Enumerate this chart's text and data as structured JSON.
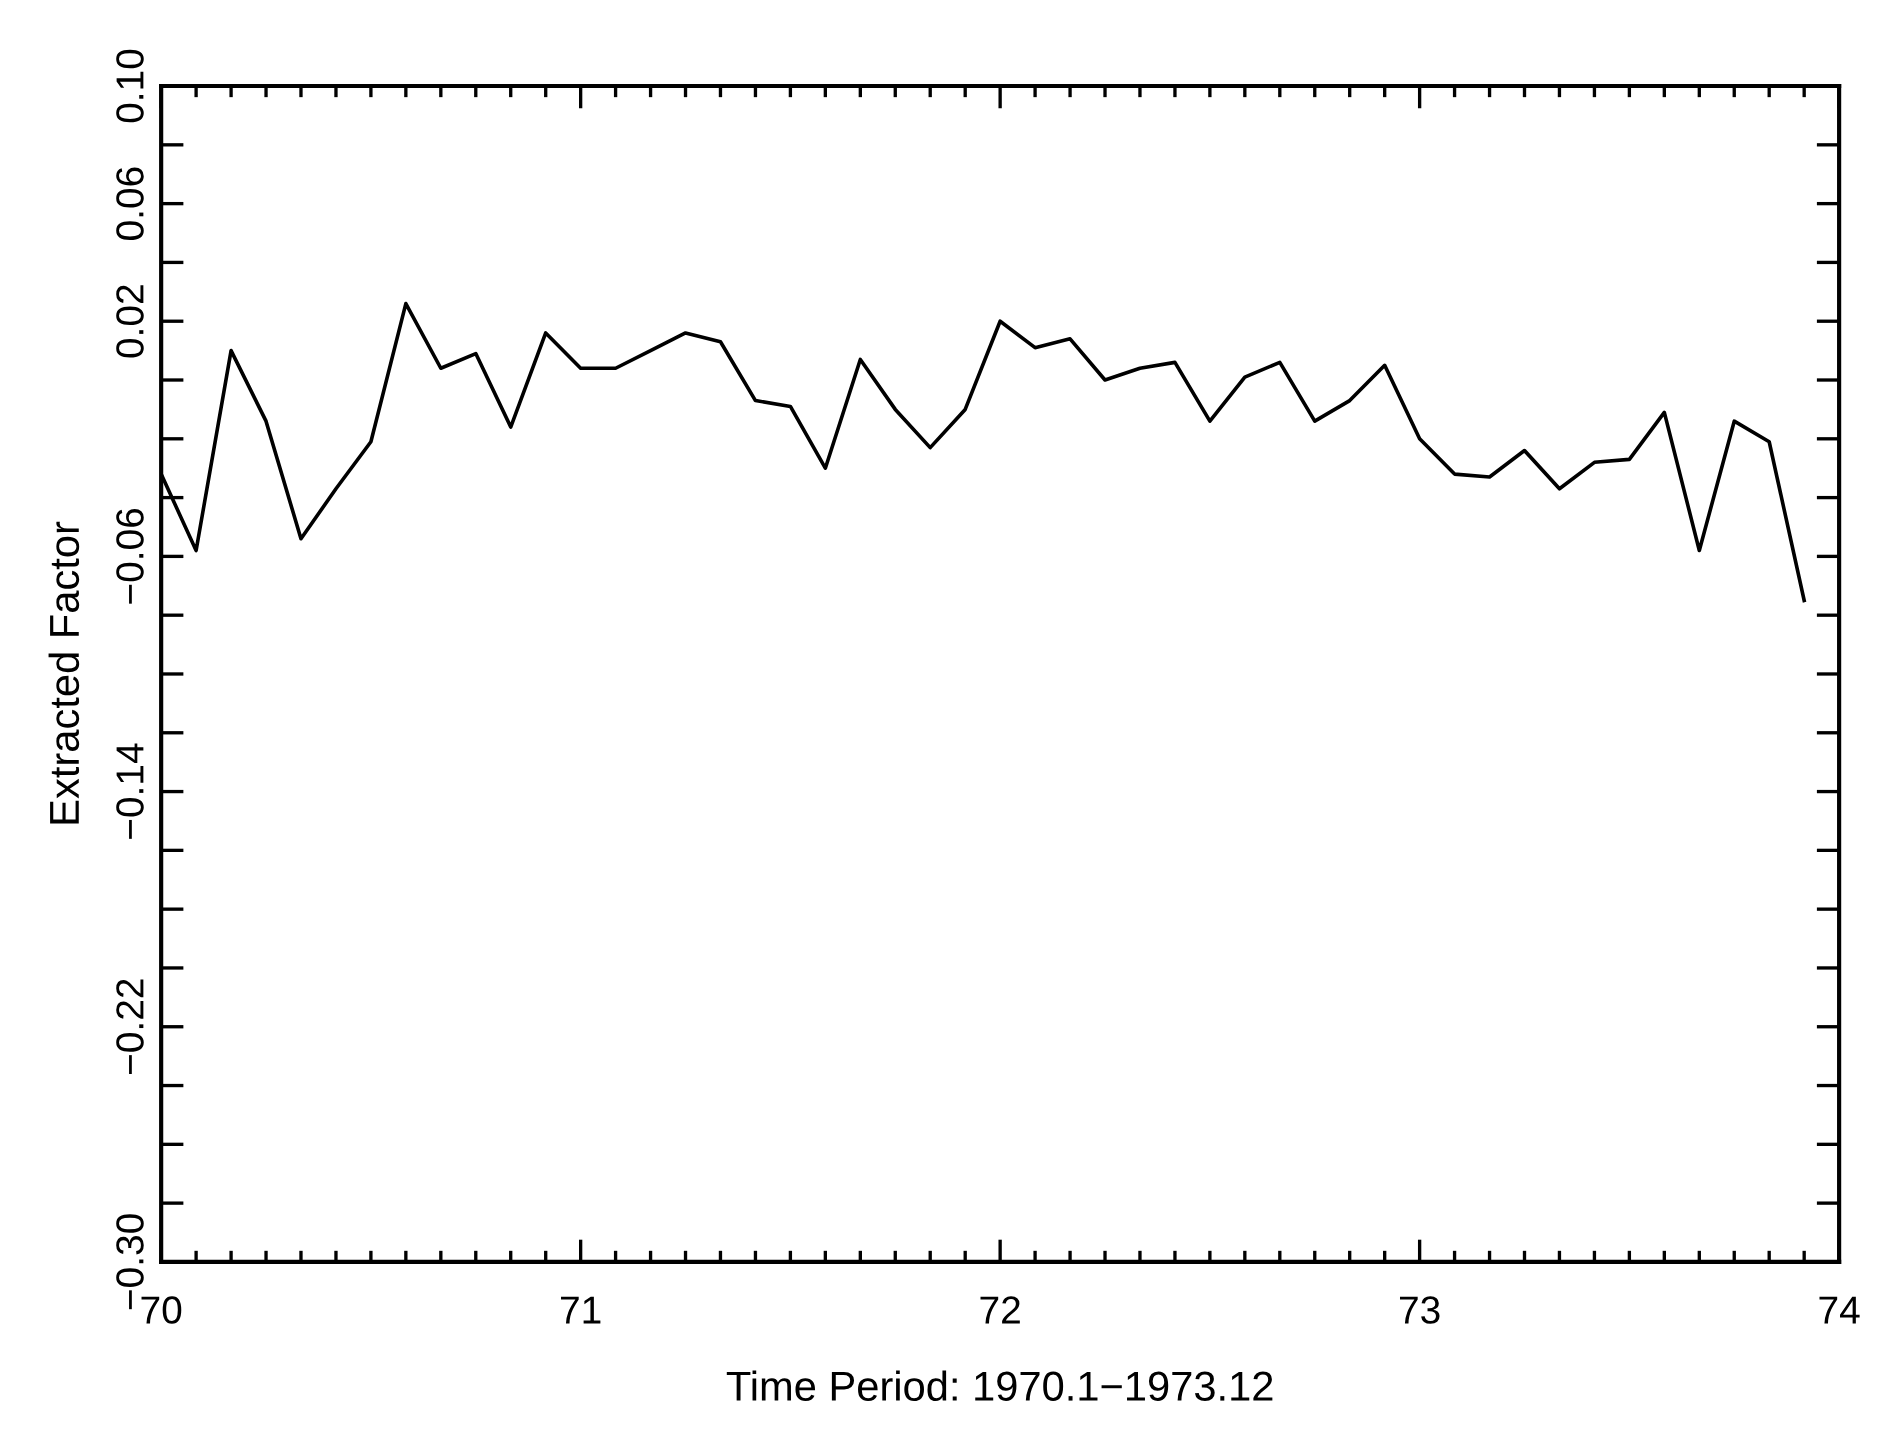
{
  "chart_data": {
    "type": "line",
    "xlabel": "Time Period: 1970.1−1973.12",
    "ylabel": "Extracted Factor",
    "x": [
      70.0,
      70.0833,
      70.1667,
      70.25,
      70.3333,
      70.4167,
      70.5,
      70.5833,
      70.6667,
      70.75,
      70.8333,
      70.9167,
      71.0,
      71.0833,
      71.1667,
      71.25,
      71.3333,
      71.4167,
      71.5,
      71.5833,
      71.6667,
      71.75,
      71.8333,
      71.9167,
      72.0,
      72.0833,
      72.1667,
      72.25,
      72.3333,
      72.4167,
      72.5,
      72.5833,
      72.6667,
      72.75,
      72.8333,
      72.9167,
      73.0,
      73.0833,
      73.1667,
      73.25,
      73.3333,
      73.4167,
      73.5,
      73.5833,
      73.6667,
      73.75,
      73.8333,
      73.9167
    ],
    "series": [
      {
        "color": "#000000",
        "values": [
          -0.032,
          -0.058,
          0.01,
          -0.014,
          -0.054,
          -0.037,
          -0.021,
          0.026,
          0.004,
          0.009,
          -0.016,
          0.016,
          0.004,
          0.004,
          0.01,
          0.016,
          0.013,
          -0.007,
          -0.009,
          -0.03,
          0.007,
          -0.01,
          -0.023,
          -0.01,
          0.02,
          0.011,
          0.014,
          0.0,
          0.004,
          0.006,
          -0.014,
          0.001,
          0.006,
          -0.014,
          -0.007,
          0.005,
          -0.02,
          -0.032,
          -0.033,
          -0.024,
          -0.037,
          -0.028,
          -0.027,
          -0.011,
          -0.058,
          -0.014,
          -0.021,
          -0.075
        ]
      }
    ],
    "xlim": [
      70,
      74
    ],
    "xticks": [
      70,
      {
        "value": 70.0833,
        "label": null
      },
      {
        "value": 70.1667,
        "label": null
      },
      {
        "value": 70.25,
        "label": null
      },
      {
        "value": 70.3333,
        "label": null
      },
      {
        "value": 70.4167,
        "label": null
      },
      {
        "value": 70.5,
        "label": null
      },
      {
        "value": 70.5833,
        "label": null
      },
      {
        "value": 70.6667,
        "label": null
      },
      {
        "value": 70.75,
        "label": null
      },
      {
        "value": 70.8333,
        "label": null
      },
      {
        "value": 70.9167,
        "label": null
      },
      71,
      {
        "value": 71.0833,
        "label": null
      },
      {
        "value": 71.1667,
        "label": null
      },
      {
        "value": 71.25,
        "label": null
      },
      {
        "value": 71.3333,
        "label": null
      },
      {
        "value": 71.4167,
        "label": null
      },
      {
        "value": 71.5,
        "label": null
      },
      {
        "value": 71.5833,
        "label": null
      },
      {
        "value": 71.6667,
        "label": null
      },
      {
        "value": 71.75,
        "label": null
      },
      {
        "value": 71.8333,
        "label": null
      },
      {
        "value": 71.9167,
        "label": null
      },
      72,
      {
        "value": 72.0833,
        "label": null
      },
      {
        "value": 72.1667,
        "label": null
      },
      {
        "value": 72.25,
        "label": null
      },
      {
        "value": 72.3333,
        "label": null
      },
      {
        "value": 72.4167,
        "label": null
      },
      {
        "value": 72.5,
        "label": null
      },
      {
        "value": 72.5833,
        "label": null
      },
      {
        "value": 72.6667,
        "label": null
      },
      {
        "value": 72.75,
        "label": null
      },
      {
        "value": 72.8333,
        "label": null
      },
      {
        "value": 72.9167,
        "label": null
      },
      73,
      {
        "value": 73.0833,
        "label": null
      },
      {
        "value": 73.1667,
        "label": null
      },
      {
        "value": 73.25,
        "label": null
      },
      {
        "value": 73.3333,
        "label": null
      },
      {
        "value": 73.4167,
        "label": null
      },
      {
        "value": 73.5,
        "label": null
      },
      {
        "value": 73.5833,
        "label": null
      },
      {
        "value": 73.6667,
        "label": null
      },
      {
        "value": 73.75,
        "label": null
      },
      {
        "value": 73.8333,
        "label": null
      },
      {
        "value": 73.9167,
        "label": null
      },
      74
    ],
    "ylim": [
      -0.3,
      0.1
    ],
    "yticks": [
      {
        "value": -0.3,
        "label": "−0.30"
      },
      {
        "value": -0.28,
        "label": null
      },
      {
        "value": -0.26,
        "label": null
      },
      {
        "value": -0.24,
        "label": null
      },
      {
        "value": -0.22,
        "label": "−0.22"
      },
      {
        "value": -0.2,
        "label": null
      },
      {
        "value": -0.18,
        "label": null
      },
      {
        "value": -0.16,
        "label": null
      },
      {
        "value": -0.14,
        "label": "−0.14"
      },
      {
        "value": -0.12,
        "label": null
      },
      {
        "value": -0.1,
        "label": null
      },
      {
        "value": -0.08,
        "label": null
      },
      {
        "value": -0.06,
        "label": "−0.06"
      },
      {
        "value": -0.04,
        "label": null
      },
      {
        "value": -0.02,
        "label": null
      },
      {
        "value": 0.0,
        "label": null
      },
      {
        "value": 0.02,
        "label": "0.02"
      },
      {
        "value": 0.04,
        "label": null
      },
      {
        "value": 0.06,
        "label": "0.06"
      },
      {
        "value": 0.08,
        "label": null
      },
      {
        "value": 0.1,
        "label": "0.10"
      }
    ],
    "marker": "none",
    "line_style": "solid"
  }
}
